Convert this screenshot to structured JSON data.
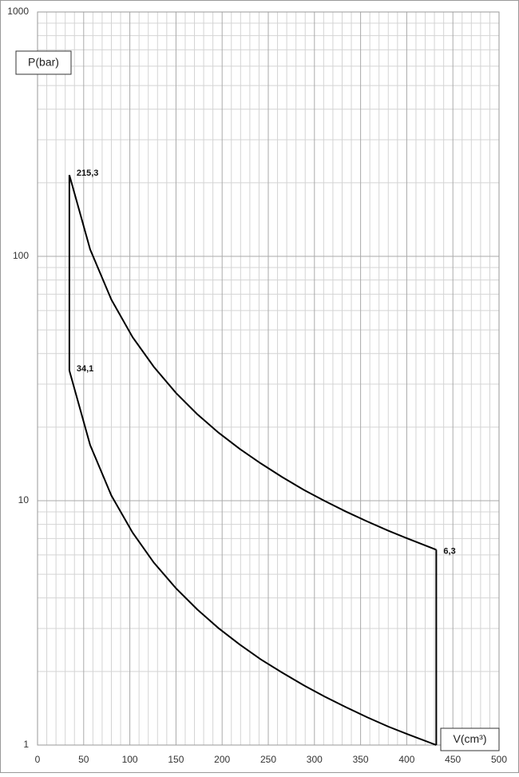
{
  "chart_data": {
    "type": "line",
    "xlabel": "V(cm³)",
    "ylabel": "P(bar)",
    "x": [
      34.5,
      57,
      80,
      103,
      126,
      150,
      173,
      196,
      219,
      242,
      265,
      288,
      311,
      334,
      357,
      380,
      403,
      432
    ],
    "series": [
      {
        "color": "#000000",
        "values": [
          215.3,
          106.8,
          66.5,
          46.7,
          35.3,
          27.6,
          22.6,
          19.0,
          16.3,
          14.2,
          12.5,
          11.1,
          9.98,
          9.03,
          8.23,
          7.54,
          6.95,
          6.3
        ],
        "value_labels": [
          "215,3",
          null,
          null,
          null,
          null,
          null,
          null,
          null,
          null,
          null,
          null,
          null,
          null,
          null,
          null,
          null,
          null,
          "6,3"
        ]
      },
      {
        "color": "#000000",
        "values": [
          34.1,
          16.9,
          10.5,
          7.4,
          5.58,
          4.38,
          3.59,
          3.01,
          2.58,
          2.24,
          1.98,
          1.76,
          1.58,
          1.43,
          1.3,
          1.19,
          1.1,
          1.0
        ],
        "value_labels": [
          "34,1",
          null,
          null,
          null,
          null,
          null,
          null,
          null,
          null,
          null,
          null,
          null,
          null,
          null,
          null,
          null,
          null,
          null
        ]
      }
    ],
    "xlim": [
      0,
      500
    ],
    "xticks": [
      0,
      50,
      100,
      150,
      200,
      250,
      300,
      350,
      400,
      450,
      500
    ],
    "ylim": [
      1,
      1000
    ],
    "yticks": [
      1,
      10,
      100,
      1000
    ],
    "ylog": true,
    "grid": true,
    "minor_grid": true
  }
}
